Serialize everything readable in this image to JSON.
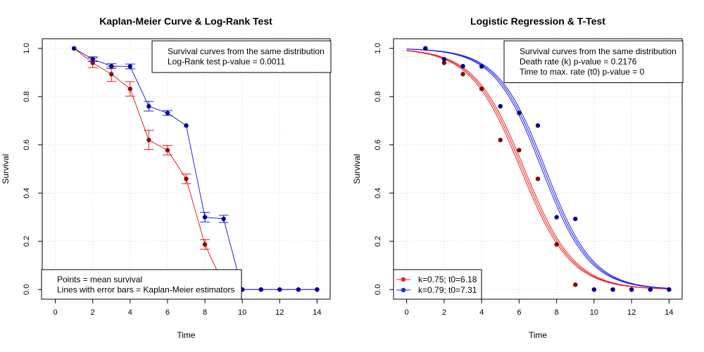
{
  "chart_data": [
    {
      "type": "line",
      "title": "Kaplan-Meier Curve & Log-Rank Test",
      "xlabel": "Time",
      "ylabel": "Survival",
      "xlim": [
        -0.7,
        14.7
      ],
      "ylim": [
        -0.04,
        1.04
      ],
      "xticks": [
        "0",
        "2",
        "4",
        "6",
        "8",
        "10",
        "12",
        "14"
      ],
      "yticks": [
        "0.0",
        "0.2",
        "0.4",
        "0.6",
        "0.8",
        "1.0"
      ],
      "grid": true,
      "colors": {
        "red": "#dd2222",
        "red_point": "#990000",
        "blue": "#2222dd",
        "blue_point": "#000099"
      },
      "series": [
        {
          "x": [
            1,
            2,
            3,
            4,
            5,
            6,
            7,
            8,
            9,
            10,
            11,
            12,
            13,
            14
          ],
          "values": [
            1.0,
            0.94,
            0.893,
            0.832,
            0.62,
            0.578,
            0.459,
            0.187,
            0.02,
            0.0,
            0.0,
            0.0,
            0.0,
            0.0
          ],
          "errors": [
            0.0,
            0.02,
            0.03,
            0.03,
            0.04,
            0.02,
            0.02,
            0.02,
            0.0,
            0.0,
            0.0,
            0.0,
            0.0,
            0.0
          ]
        },
        {
          "x": [
            1,
            2,
            3,
            4,
            5,
            6,
            7,
            8,
            9,
            10,
            11,
            12,
            13,
            14
          ],
          "values": [
            1.0,
            0.955,
            0.926,
            0.925,
            0.76,
            0.732,
            0.68,
            0.3,
            0.293,
            0.0,
            0.0,
            0.0,
            0.0,
            0.0
          ],
          "errors": [
            0.0,
            0.01,
            0.01,
            0.01,
            0.02,
            0.01,
            0.0,
            0.02,
            0.015,
            0.0,
            0.0,
            0.0,
            0.0,
            0.0
          ]
        }
      ],
      "legend_top": {
        "placement": "top-right",
        "lines": [
          "Survival curves from the same distribution",
          "Log-Rank test p-value = 0.0011"
        ]
      },
      "legend_bottom": {
        "placement": "bottom-left",
        "lines": [
          "Points = mean survival",
          "Lines with error bars = Kaplan-Meier estimators"
        ]
      }
    },
    {
      "type": "scatter",
      "title": "Logistic Regression & T-Test",
      "xlabel": "Time",
      "ylabel": "Survival",
      "xlim": [
        -0.7,
        14.7
      ],
      "ylim": [
        -0.04,
        1.04
      ],
      "xticks": [
        "0",
        "2",
        "4",
        "6",
        "8",
        "10",
        "12",
        "14"
      ],
      "yticks": [
        "0.0",
        "0.2",
        "0.4",
        "0.6",
        "0.8",
        "1.0"
      ],
      "grid": true,
      "colors": {
        "red": "#ee2222",
        "red_point": "#8b0000",
        "blue": "#2222ee",
        "blue_point": "#00008b"
      },
      "series": [
        {
          "name": "k=0.75; t0=6.18",
          "x": [
            1,
            2,
            3,
            4,
            5,
            6,
            7,
            8,
            9,
            10,
            11,
            12,
            13,
            14
          ],
          "values": [
            1.0,
            0.94,
            0.893,
            0.832,
            0.62,
            0.578,
            0.459,
            0.187,
            0.02,
            0.0,
            0.0,
            0.0,
            0.0,
            0.0
          ],
          "fit": {
            "k": 0.75,
            "t0": 6.18
          }
        },
        {
          "name": "k=0.79; t0=7.31",
          "x": [
            1,
            2,
            3,
            4,
            5,
            6,
            7,
            8,
            9,
            10,
            11,
            12,
            13,
            14
          ],
          "values": [
            1.0,
            0.955,
            0.926,
            0.925,
            0.76,
            0.732,
            0.68,
            0.3,
            0.293,
            0.0,
            0.0,
            0.0,
            0.0,
            0.0
          ],
          "fit": {
            "k": 0.79,
            "t0": 7.31
          }
        }
      ],
      "legend_top": {
        "placement": "top-right",
        "lines": [
          "Survival curves from the same distribution",
          "Death rate (k) p-value = 0.2176",
          "Time to max. rate (t0) p-value = 0"
        ]
      },
      "legend_bottom": {
        "placement": "bottom-left",
        "lines": [
          "k=0.75; t0=6.18",
          "k=0.79; t0=7.31"
        ]
      }
    }
  ]
}
